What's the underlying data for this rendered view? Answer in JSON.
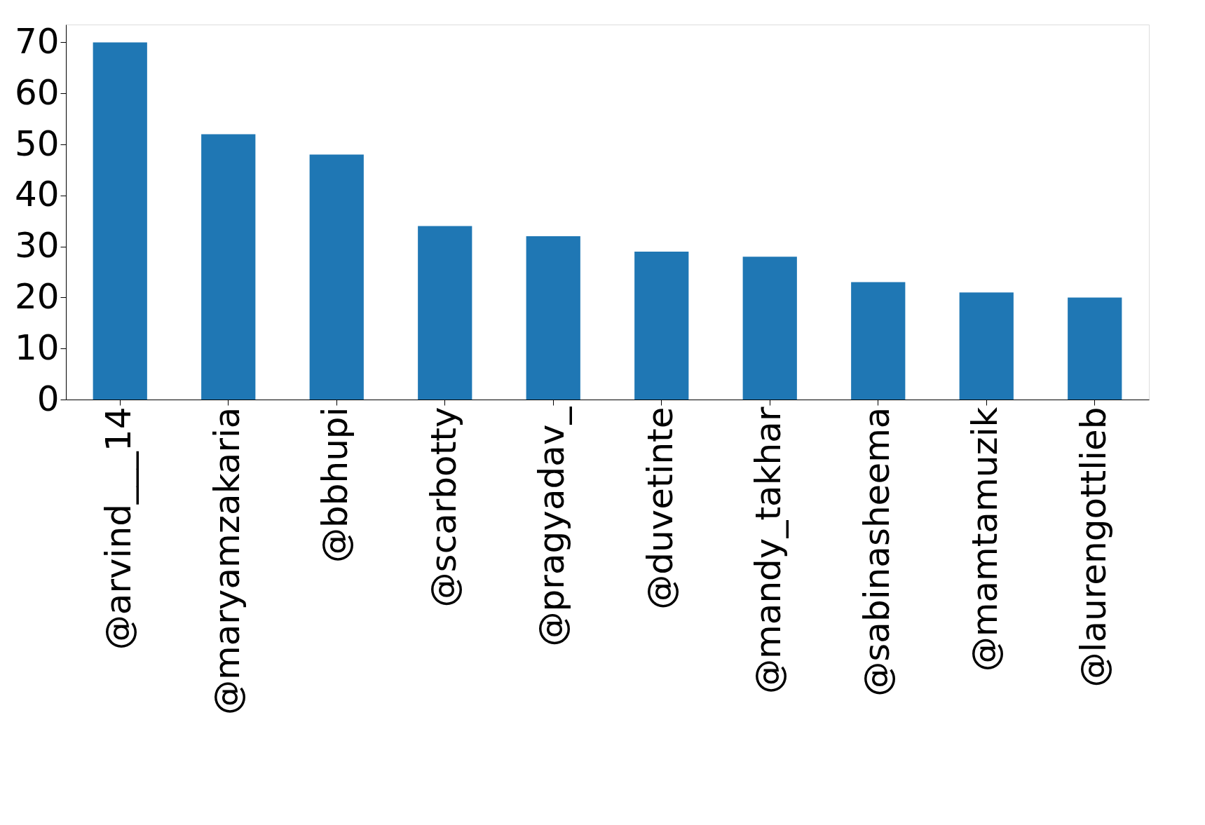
{
  "chart_data": {
    "type": "bar",
    "categories": [
      "@arvind___14",
      "@maryamzakaria",
      "@bbhupi",
      "@scarbotty",
      "@pragyadav_",
      "@duvetinte",
      "@mandy_takhar",
      "@sabinasheema",
      "@mamtamuzik",
      "@laurengottlieb"
    ],
    "values": [
      70,
      52,
      48,
      34,
      32,
      29,
      28,
      23,
      21,
      20
    ],
    "color": "#1f77b4",
    "ylim": [
      0,
      73.5
    ],
    "yticks": [
      0,
      10,
      20,
      30,
      40,
      50,
      60,
      70
    ],
    "grid": false
  }
}
